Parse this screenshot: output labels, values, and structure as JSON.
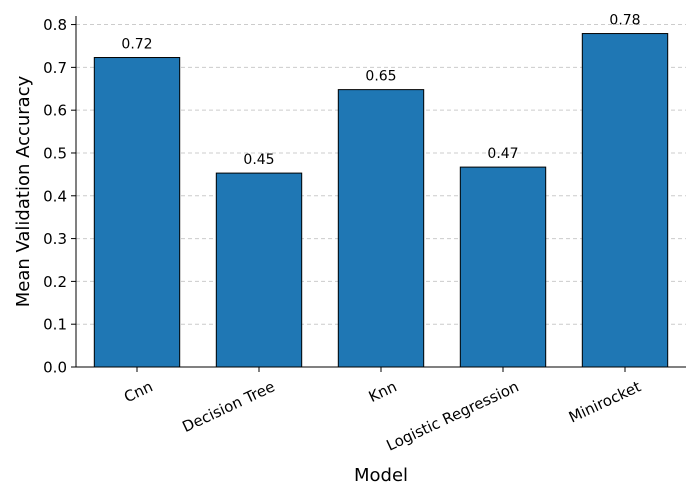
{
  "chart_data": {
    "type": "bar",
    "title": "",
    "xlabel": "Model",
    "ylabel": "Mean Validation Accuracy",
    "categories": [
      "Cnn",
      "Decision Tree",
      "Knn",
      "Logistic Regression",
      "Minirocket"
    ],
    "values": [
      0.723,
      0.453,
      0.648,
      0.467,
      0.779
    ],
    "value_labels": [
      "0.72",
      "0.45",
      "0.65",
      "0.47",
      "0.78"
    ],
    "ylim": [
      0,
      0.82
    ],
    "yticks": [
      "0.0",
      "0.1",
      "0.2",
      "0.3",
      "0.4",
      "0.5",
      "0.6",
      "0.7",
      "0.8"
    ],
    "grid": "y-dashed",
    "bar_color": "#1f77b4",
    "bar_edge_color": "#000000",
    "grid_color": "#cccccc"
  }
}
